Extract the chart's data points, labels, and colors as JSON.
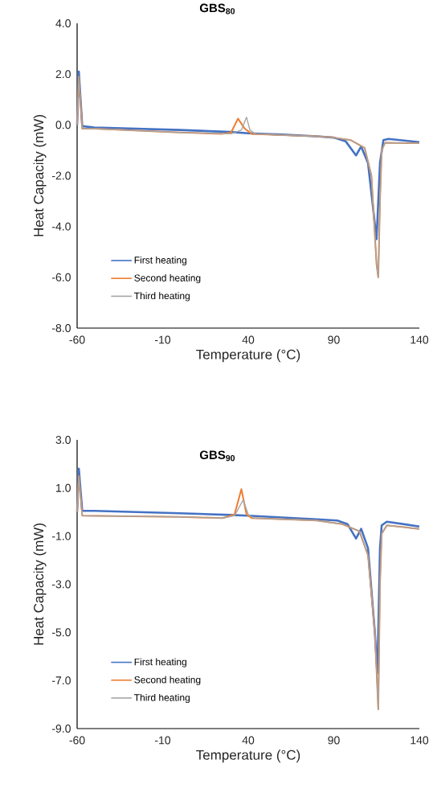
{
  "chart_data": [
    {
      "type": "line",
      "title": "GBS$_{80}$",
      "xlabel": "Temperature (°C)",
      "ylabel": "Heat Capacity (mW)",
      "legend": "bottom left",
      "line_style": "solid",
      "xlim": [
        -60,
        140
      ],
      "ylim": [
        -8,
        4
      ],
      "xticks": [
        -60,
        -10,
        40,
        90,
        140
      ],
      "yticks": [
        {
          "value": -8,
          "label": "-8.0"
        },
        {
          "value": -6,
          "label": "-6.0"
        },
        {
          "value": -4,
          "label": "-4.0"
        },
        {
          "value": -2,
          "label": "-2.0"
        },
        {
          "value": 0,
          "label": "0.0"
        },
        {
          "value": 2,
          "label": "2.0"
        },
        {
          "value": 4,
          "label": "4.0"
        }
      ],
      "series": [
        {
          "name": "First heating",
          "color": "#4472c4",
          "x": [
            -60,
            -59,
            -57,
            -50,
            0,
            30,
            40,
            60,
            80,
            90,
            97,
            103,
            106,
            110,
            115,
            117,
            119,
            122,
            140
          ],
          "values": [
            0,
            2.1,
            -0.05,
            -0.1,
            -0.2,
            -0.28,
            -0.33,
            -0.38,
            -0.45,
            -0.5,
            -0.65,
            -1.2,
            -0.85,
            -1.5,
            -4.5,
            -1.5,
            -0.6,
            -0.55,
            -0.68
          ]
        },
        {
          "name": "Second heating",
          "color": "#ed7d31",
          "x": [
            -60,
            -59,
            -57,
            -50,
            0,
            25,
            30,
            34,
            38,
            42,
            60,
            80,
            90,
            100,
            108,
            112,
            115,
            116,
            117,
            118,
            120,
            140
          ],
          "values": [
            0,
            1.9,
            -0.15,
            -0.15,
            -0.3,
            -0.35,
            -0.3,
            0.25,
            -0.15,
            -0.35,
            -0.4,
            -0.45,
            -0.5,
            -0.6,
            -0.9,
            -2.0,
            -5.5,
            -6.0,
            -3.0,
            -1.0,
            -0.7,
            -0.72
          ]
        },
        {
          "name": "Third heating",
          "color": "#a5a5a5",
          "x": [
            -60,
            -59,
            -57,
            -50,
            0,
            30,
            36,
            39,
            41,
            44,
            60,
            80,
            90,
            100,
            108,
            112,
            115,
            116,
            117,
            118,
            120,
            140
          ],
          "values": [
            0,
            1.9,
            -0.15,
            -0.15,
            -0.3,
            -0.35,
            -0.2,
            0.3,
            -0.2,
            -0.35,
            -0.4,
            -0.45,
            -0.5,
            -0.6,
            -0.9,
            -2.0,
            -5.5,
            -6.0,
            -3.0,
            -1.0,
            -0.7,
            -0.72
          ]
        }
      ]
    },
    {
      "type": "line",
      "title": "GBS$_{90}$",
      "xlabel": "Temperature (°C)",
      "ylabel": "Heat Capacity (mW)",
      "legend": "bottom left",
      "line_style": "solid",
      "xlim": [
        -60,
        140
      ],
      "ylim": [
        -9,
        3
      ],
      "xticks": [
        -60,
        -10,
        40,
        90,
        140
      ],
      "yticks": [
        {
          "value": -9,
          "label": "-9.0"
        },
        {
          "value": -7,
          "label": "-7.0"
        },
        {
          "value": -5,
          "label": "-5.0"
        },
        {
          "value": -3,
          "label": "-3.0"
        },
        {
          "value": -1,
          "label": "-1.0"
        },
        {
          "value": 1,
          "label": "1.0"
        },
        {
          "value": 3,
          "label": "3.0"
        }
      ],
      "series": [
        {
          "name": "First heating",
          "color": "#4472c4",
          "x": [
            -60,
            -59,
            -57,
            -50,
            0,
            30,
            40,
            80,
            92,
            98,
            103,
            106,
            110,
            114,
            115.5,
            117,
            118,
            121,
            140
          ],
          "values": [
            0,
            1.8,
            0.05,
            0.05,
            -0.05,
            -0.12,
            -0.15,
            -0.3,
            -0.35,
            -0.5,
            -1.1,
            -0.7,
            -1.5,
            -5.0,
            -6.7,
            -1.5,
            -0.55,
            -0.4,
            -0.6
          ]
        },
        {
          "name": "Second heating",
          "color": "#ed7d31",
          "x": [
            -60,
            -59,
            -57,
            0,
            25,
            32,
            36,
            39,
            42,
            80,
            95,
            105,
            110,
            114,
            116,
            117,
            118,
            121,
            140
          ],
          "values": [
            0,
            1.5,
            -0.15,
            -0.2,
            -0.25,
            -0.1,
            0.95,
            -0.1,
            -0.25,
            -0.35,
            -0.5,
            -0.8,
            -1.8,
            -5.0,
            -8.2,
            -3.0,
            -0.9,
            -0.55,
            -0.7
          ]
        },
        {
          "name": "Third heating",
          "color": "#a5a5a5",
          "x": [
            -60,
            -59,
            -57,
            0,
            25,
            32,
            37,
            40,
            43,
            80,
            95,
            105,
            110,
            114,
            116,
            117,
            118,
            121,
            140
          ],
          "values": [
            0,
            1.5,
            -0.15,
            -0.2,
            -0.25,
            -0.15,
            0.5,
            -0.1,
            -0.25,
            -0.35,
            -0.5,
            -0.8,
            -1.8,
            -5.0,
            -8.2,
            -3.0,
            -0.9,
            -0.55,
            -0.7
          ]
        }
      ]
    }
  ]
}
